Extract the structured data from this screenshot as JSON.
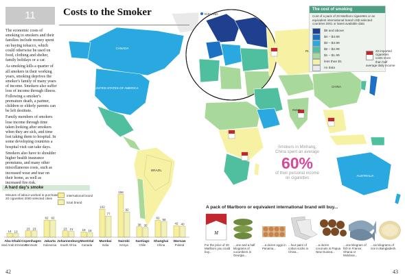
{
  "header": {
    "chapter_number": "11",
    "title": "Costs to the Smoker"
  },
  "intro_paragraphs": [
    "The economic costs of smoking to smokers and their families include money spent on buying tobacco, which could otherwise be used on food, clothing and shelter, family holidays or a car.",
    "As smoking kills a quarter of all smokers in their working years, smoking deprives the smoker's family of many years of income. Smokers also suffer loss of income through illness. Following a smoker's premature death, a partner, children or elderly parents can be left destitute.",
    "Family members of smokers lose income through time taken looking after smokers when they are sick, and time lost taking them to hospital. In some developing countries a hospital visit can take days.",
    "Smokers also have to shoulder higher health insurance premiums, and many other miscellaneous costs, such as increased wear and tear on their home, as well as increased fire risk."
  ],
  "map": {
    "labels": {
      "canada": "CANADA",
      "usa": "UNITED STATES OF AMERICA",
      "brazil": "BRAZIL",
      "russia": "RUSSIAN FEDERATION",
      "china": "CHINA",
      "australia": "AUSTRALIA",
      "india": "INDIA",
      "iceland": "ICELAND"
    }
  },
  "legend": {
    "title": "The cost of smoking",
    "subtitle": "Cost of a pack of 20 Marlboro cigarettes or an equivalent international brand US$ selected countries 2001 or latest available data",
    "items": [
      {
        "label": "$6 and above",
        "color": "#1f3f8f"
      },
      {
        "label": "$4 – $4.99",
        "color": "#1d71c4"
      },
      {
        "label": "$3 – $3.99",
        "color": "#29a9e0"
      },
      {
        "label": "$2 – $2.99",
        "color": "#4fbfa0"
      },
      {
        "label": "$1 – $1.99",
        "color": "#a9d99a"
      },
      {
        "label": "less than $1",
        "color": "#f7f1a3"
      },
      {
        "label": "no data",
        "color": "#e9e9e9"
      }
    ],
    "import_note": "20 imported cigarettes costs more than half average daily income"
  },
  "china_callout": {
    "line1": "Smokers in Minhang, China spent an average",
    "percent": "60%",
    "line2": "of their personal income on cigarettes"
  },
  "bar_section": {
    "title": "A hard day's smoke",
    "subtitle": "Minutes of labour worked to purchase 20 cigarettes 2000 selected cities",
    "legend": [
      {
        "label": "international brand",
        "color": "#f7ef9b"
      },
      {
        "label": "local brand",
        "color": "#f2f2b8"
      }
    ]
  },
  "chart_data": {
    "type": "bar",
    "title": "A hard day's smoke",
    "categories": [
      "Abu Dhabi United Arab Emirates",
      "Copenhagen Denmark",
      "Jakarta Indonesia",
      "Johannesburg South Africa",
      "Montréal Canada",
      "Mumbai India",
      "Nairobi Kenya",
      "Santiago Chile",
      "Shanghai China",
      "Warsaw Poland"
    ],
    "city": [
      "Abu Dhabi",
      "Copenhagen",
      "Jakarta",
      "Johannesburg",
      "Montréal",
      "Mumbai",
      "Nairobi",
      "Santiago",
      "Shanghai",
      "Warsaw"
    ],
    "country": [
      "United Arab Emirates",
      "Denmark",
      "Indonesia",
      "South Africa",
      "Canada",
      "India",
      "Kenya",
      "Chile",
      "China",
      "Poland"
    ],
    "series": [
      {
        "name": "international brand",
        "values": [
          14,
          23,
          62,
          23,
          19,
          102,
          156,
          38,
          62,
          42
        ]
      },
      {
        "name": "local brand",
        "values": [
          13,
          23,
          62,
          21,
          16,
          77,
          92,
          35,
          56,
          40
        ]
      }
    ],
    "ylim": [
      0,
      160
    ]
  },
  "products": {
    "title": "A pack of Marlboro or equivalent international brand will buy...",
    "items": [
      {
        "caption": "For the price of 20 Marlboro you could buy...",
        "icon": "marlboro-pack"
      },
      {
        "caption": "...one and a half kilograms of cucumbers in Georgia...",
        "icon": "cucumbers"
      },
      {
        "caption": "...a dozen eggs in Panama...",
        "icon": "eggs"
      },
      {
        "caption": "...four pairs of cotton socks in China...",
        "icon": "socks"
      },
      {
        "caption": "...a dozen coconuts in Papua New Guinea...",
        "icon": "coconuts"
      },
      {
        "caption": "...one kilogram of fish in France, Ghana or Moldova...",
        "icon": "fish"
      },
      {
        "caption": "...six kilograms of rice in Bangladesh.",
        "icon": "rice"
      }
    ]
  },
  "page_numbers": {
    "left": "42",
    "right": "43"
  }
}
